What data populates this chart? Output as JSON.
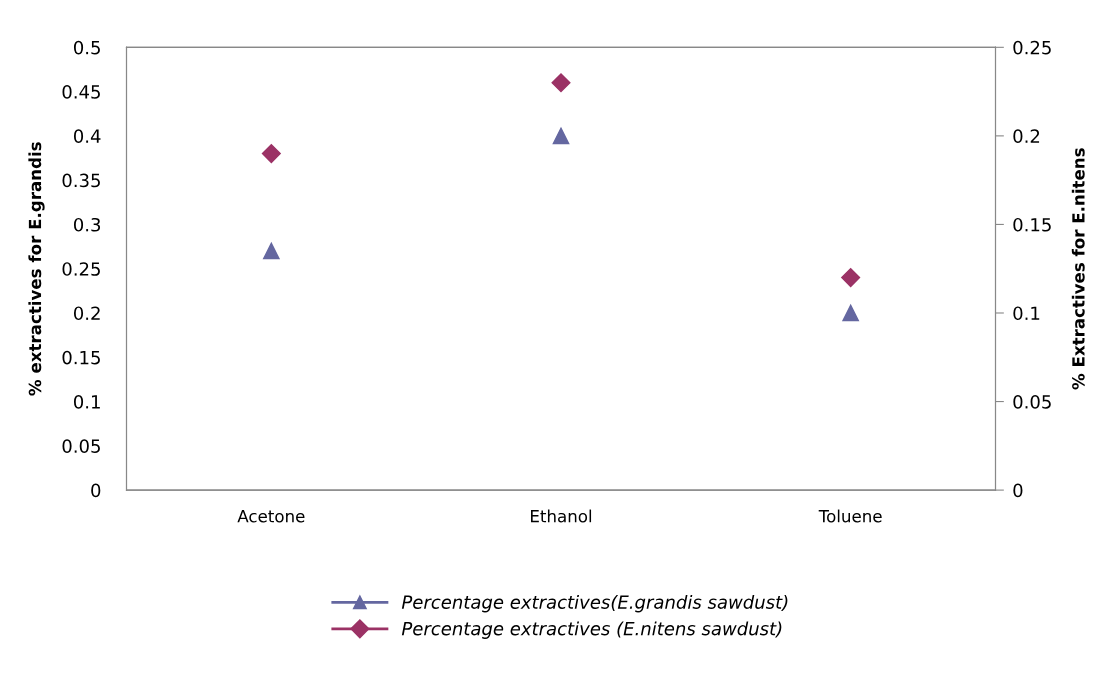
{
  "chart_data": {
    "type": "scatter",
    "categories": [
      "Acetone",
      "Ethanol",
      "Toluene"
    ],
    "ylabel": "% extractives for E.grandis",
    "y2label": "% Extractives for E.nitens",
    "ylim": [
      0,
      0.5
    ],
    "yticks": [
      0,
      0.05,
      0.1,
      0.15,
      0.2,
      0.25,
      0.3,
      0.35,
      0.4,
      0.45,
      0.5
    ],
    "y2lim": [
      0,
      0.25
    ],
    "y2ticks": [
      0,
      0.05,
      0.1,
      0.15,
      0.2,
      0.25
    ],
    "grid": false,
    "legend": "bottom",
    "series": [
      {
        "name": "Percentage extractives(E.grandis sawdust)",
        "color": "#6467a0",
        "marker": "triangle",
        "values": [
          0.27,
          0.4,
          0.2
        ]
      },
      {
        "name": "Percentage extractives (E.nitens sawdust)",
        "color": "#9b3265",
        "marker": "diamond",
        "axis": "y2",
        "values": [
          0.19,
          0.23,
          0.12
        ]
      }
    ]
  }
}
